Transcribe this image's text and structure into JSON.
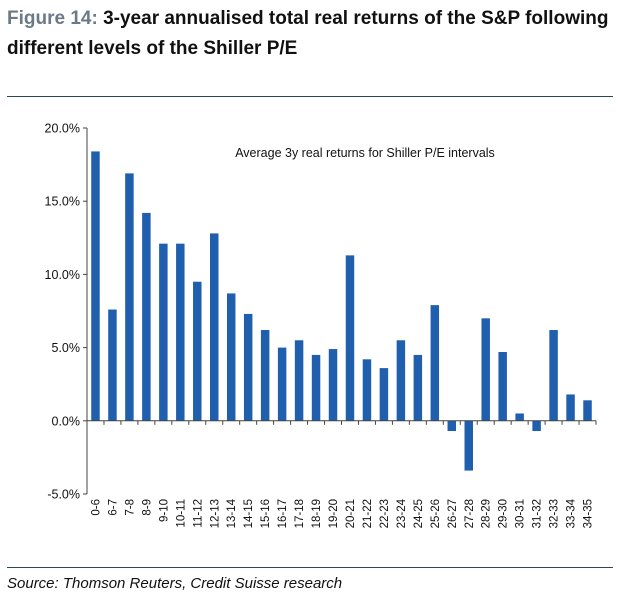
{
  "figure": {
    "label": "Figure 14:",
    "title": "3-year annualised total real returns of the S&P following different levels of the Shiller P/E",
    "source": "Source: Thomson Reuters, Credit Suisse research"
  },
  "colors": {
    "bar": "#1f5fad",
    "rule": "#2f4650",
    "label_gray": "#6b7a86"
  },
  "chart_data": {
    "type": "bar",
    "title": "Average 3y real returns for Shiller P/E intervals",
    "xlabel": "",
    "ylabel": "",
    "categories": [
      "0-6",
      "6-7",
      "7-8",
      "8-9",
      "9-10",
      "10-11",
      "11-12",
      "12-13",
      "13-14",
      "14-15",
      "15-16",
      "16-17",
      "17-18",
      "18-19",
      "19-20",
      "20-21",
      "21-22",
      "22-23",
      "23-24",
      "24-25",
      "25-26",
      "26-27",
      "27-28",
      "28-29",
      "29-30",
      "30-31",
      "31-32",
      "32-33",
      "33-34",
      "34-35"
    ],
    "values": [
      18.4,
      7.6,
      16.9,
      14.2,
      12.1,
      12.1,
      9.5,
      12.8,
      8.7,
      7.3,
      6.2,
      5.0,
      5.5,
      4.5,
      4.9,
      11.3,
      4.2,
      3.6,
      5.5,
      4.5,
      7.9,
      -0.7,
      -3.4,
      7.0,
      4.7,
      0.5,
      -0.7,
      6.2,
      1.8,
      1.4
    ],
    "y_ticks": [
      "20.0%",
      "15.0%",
      "10.0%",
      "5.0%",
      "0.0%",
      "-5.0%"
    ],
    "y_tick_values": [
      20,
      15,
      10,
      5,
      0,
      -5
    ],
    "ylim": [
      -5,
      20
    ],
    "grid": false,
    "legend": "none"
  }
}
